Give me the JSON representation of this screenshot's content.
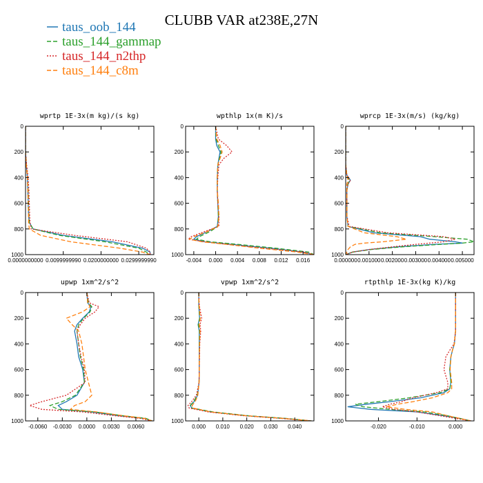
{
  "title": "CLUBB VAR at238E,27N",
  "legend": [
    {
      "name": "taus_oob_144",
      "color": "#1f77b4",
      "dash": "solid"
    },
    {
      "name": "taus_144_gammap",
      "color": "#2ca02c",
      "dash": "dashed"
    },
    {
      "name": "taus_144_n2thp",
      "color": "#d62728",
      "dash": "dotted"
    },
    {
      "name": "taus_144_c8m",
      "color": "#ff7f0e",
      "dash": "dashed"
    }
  ],
  "chart_data": [
    {
      "type": "line",
      "title": "wprtp  1E-3x(m kg)/(s kg)",
      "xlim": [
        0,
        0.034
      ],
      "ylim": [
        1000,
        0
      ],
      "xticks": [
        0,
        0.01,
        0.02,
        0.03
      ],
      "xtick_labels": [
        "0.0000000000",
        "0.0099999990",
        "0.0200000000",
        "0.0299999990"
      ],
      "yticks": [
        0,
        200,
        400,
        600,
        800,
        1000
      ],
      "y": [
        0,
        100,
        200,
        300,
        400,
        500,
        600,
        700,
        750,
        800,
        850,
        900,
        950,
        980,
        1000
      ],
      "series": [
        {
          "name": "taus_oob_144",
          "x": [
            0,
            0,
            0,
            0.0002,
            0.0005,
            0.0006,
            0.0007,
            0.0008,
            0.001,
            0.002,
            0.01,
            0.023,
            0.031,
            0.033,
            0.033
          ]
        },
        {
          "name": "taus_144_gammap",
          "x": [
            0,
            0,
            0,
            0.0002,
            0.0005,
            0.0007,
            0.0008,
            0.0009,
            0.001,
            0.002,
            0.009,
            0.021,
            0.03,
            0.032,
            0.033
          ]
        },
        {
          "name": "taus_144_n2thp",
          "x": [
            0,
            0,
            0,
            0.0003,
            0.0007,
            0.0009,
            0.001,
            0.0011,
            0.0012,
            0.0015,
            0.013,
            0.027,
            0.032,
            0.033,
            0.033
          ]
        },
        {
          "name": "taus_144_c8m",
          "x": [
            0,
            0,
            0,
            0.0002,
            0.0005,
            0.0006,
            0.0007,
            0.0008,
            0.0008,
            0.001,
            0.004,
            0.012,
            0.025,
            0.031,
            0.033
          ]
        }
      ]
    },
    {
      "type": "line",
      "title": "wpthlp  1x(m K)/s",
      "xlim": [
        -0.0055,
        0.018
      ],
      "ylim": [
        1000,
        0
      ],
      "xticks": [
        -0.004,
        0,
        0.004,
        0.008,
        0.012,
        0.016
      ],
      "xtick_labels": [
        "-0.004",
        "0.000",
        "0.004",
        "0.008",
        "0.012",
        "0.016"
      ],
      "yticks": [
        0,
        200,
        400,
        600,
        800,
        1000
      ],
      "y": [
        0,
        100,
        150,
        200,
        250,
        300,
        400,
        500,
        600,
        700,
        780,
        820,
        860,
        880,
        900,
        920,
        950,
        980,
        1000
      ],
      "series": [
        {
          "name": "taus_oob_144",
          "x": [
            0,
            0,
            0.0002,
            0.0008,
            0.0006,
            0.0004,
            0.0003,
            0.0003,
            0.0004,
            0.0005,
            0.0003,
            -0.0015,
            -0.0035,
            -0.004,
            -0.002,
            0.003,
            0.01,
            0.016,
            0.018
          ]
        },
        {
          "name": "taus_144_gammap",
          "x": [
            0,
            0.0001,
            0.0005,
            0.001,
            0.0007,
            0.0004,
            0.0003,
            0.0003,
            0.0004,
            0.0005,
            0.0004,
            -0.001,
            -0.003,
            -0.0035,
            -0.001,
            0.004,
            0.011,
            0.017,
            0.018
          ]
        },
        {
          "name": "taus_144_n2thp",
          "x": [
            0,
            0.0005,
            0.002,
            0.003,
            0.0015,
            0.0006,
            0.0004,
            0.0003,
            0.0004,
            0.0006,
            0.0006,
            -0.002,
            -0.0045,
            -0.005,
            -0.002,
            0.002,
            0.009,
            0.016,
            0.018
          ]
        },
        {
          "name": "taus_144_c8m",
          "x": [
            0,
            0.0002,
            0.0008,
            0.0012,
            0.0008,
            0.0004,
            0.0003,
            0.0003,
            0.0005,
            0.0006,
            0.0004,
            -0.0015,
            -0.004,
            -0.0048,
            -0.0025,
            0.002,
            0.008,
            0.015,
            0.018
          ]
        }
      ]
    },
    {
      "type": "line",
      "title": "wprcp  1E-3x(m/s) (kg/kg)",
      "xlim": [
        0,
        0.0055
      ],
      "ylim": [
        1000,
        0
      ],
      "xticks": [
        0,
        0.001,
        0.002,
        0.003,
        0.004,
        0.005
      ],
      "xtick_labels": [
        "0.000000",
        "0.001000",
        "0.002000",
        "0.003000",
        "0.004000",
        "0.005000"
      ],
      "yticks": [
        0,
        200,
        400,
        600,
        800,
        1000
      ],
      "y": [
        0,
        300,
        380,
        420,
        450,
        500,
        600,
        700,
        780,
        830,
        860,
        880,
        900,
        910,
        920,
        940,
        960,
        980,
        1000
      ],
      "series": [
        {
          "name": "taus_oob_144",
          "x": [
            0,
            0,
            5e-05,
            0.0002,
            0.0001,
            5e-05,
            5e-05,
            5e-05,
            0.0001,
            0.0012,
            0.0032,
            0.0036,
            0.0047,
            0.005,
            0.0038,
            0.0022,
            0.001,
            0.0003,
            0
          ]
        },
        {
          "name": "taus_144_gammap",
          "x": [
            0,
            0,
            5e-05,
            0.00015,
            0.0001,
            5e-05,
            5e-05,
            5e-05,
            0.0001,
            0.0015,
            0.0038,
            0.0052,
            0.0055,
            0.005,
            0.0041,
            0.0024,
            0.0011,
            0.0003,
            0
          ]
        },
        {
          "name": "taus_144_n2thp",
          "x": [
            0,
            0,
            5e-05,
            0.0002,
            0.0001,
            5e-05,
            5e-05,
            5e-05,
            0.00015,
            0.0018,
            0.0042,
            0.0047,
            0.0042,
            0.0036,
            0.003,
            0.002,
            0.001,
            0.0003,
            0
          ]
        },
        {
          "name": "taus_144_c8m",
          "x": [
            0,
            0,
            5e-05,
            0.0001,
            5e-05,
            5e-05,
            5e-05,
            5e-05,
            0.0001,
            0.0008,
            0.0022,
            0.0026,
            0.0016,
            0.0008,
            0.0004,
            0.0002,
            0.0001,
            5e-05,
            0
          ]
        }
      ]
    },
    {
      "type": "line",
      "title": "upwp  1xm^2/s^2",
      "xlim": [
        -0.0075,
        0.0082
      ],
      "ylim": [
        1000,
        0
      ],
      "xticks": [
        -0.006,
        -0.003,
        0,
        0.003,
        0.006
      ],
      "xtick_labels": [
        "-0.0060",
        "-0.0030",
        "0.0000",
        "0.0030",
        "0.0060"
      ],
      "yticks": [
        0,
        200,
        400,
        600,
        800,
        1000
      ],
      "y": [
        0,
        80,
        110,
        150,
        200,
        250,
        300,
        400,
        500,
        600,
        700,
        800,
        850,
        880,
        910,
        930,
        960,
        980,
        1000
      ],
      "series": [
        {
          "name": "taus_oob_144",
          "x": [
            0,
            0.0001,
            0.0005,
            0.0003,
            -0.0005,
            -0.0012,
            -0.0015,
            -0.0012,
            -0.001,
            -0.0005,
            -0.0003,
            -0.0012,
            -0.0025,
            -0.0035,
            -0.003,
            0.0005,
            0.004,
            0.007,
            0.008
          ]
        },
        {
          "name": "taus_144_gammap",
          "x": [
            0,
            0.0002,
            0.0006,
            0.0004,
            -0.0004,
            -0.001,
            -0.0012,
            -0.001,
            -0.0008,
            -0.0004,
            -0.0003,
            -0.0014,
            -0.003,
            -0.0045,
            -0.0035,
            0.001,
            0.0045,
            0.0072,
            0.008
          ]
        },
        {
          "name": "taus_144_n2thp",
          "x": [
            0,
            0.0003,
            0.0015,
            0.001,
            -0.0002,
            -0.0008,
            -0.0012,
            -0.001,
            -0.0007,
            -0.0003,
            -0.0002,
            -0.0025,
            -0.0055,
            -0.007,
            -0.0055,
            -0.0005,
            0.0035,
            0.0065,
            0.008
          ]
        },
        {
          "name": "taus_144_c8m",
          "x": [
            0,
            0.0001,
            0.0004,
            -0.0005,
            -0.0025,
            -0.0018,
            -0.001,
            -0.0006,
            -0.0004,
            -0.0002,
            0.0002,
            0.0006,
            -0.0002,
            -0.0015,
            -0.002,
            0.0012,
            0.0045,
            0.007,
            0.008
          ]
        }
      ]
    },
    {
      "type": "line",
      "title": "vpwp  1xm^2/s^2",
      "xlim": [
        -0.0055,
        0.048
      ],
      "ylim": [
        1000,
        0
      ],
      "xticks": [
        0,
        0.01,
        0.02,
        0.03,
        0.04
      ],
      "xtick_labels": [
        "0.000",
        "0.010",
        "0.020",
        "0.030",
        "0.040"
      ],
      "yticks": [
        0,
        200,
        400,
        600,
        800,
        1000
      ],
      "y": [
        0,
        100,
        200,
        250,
        300,
        400,
        500,
        600,
        700,
        800,
        850,
        880,
        900,
        930,
        960,
        980,
        1000
      ],
      "series": [
        {
          "name": "taus_oob_144",
          "x": [
            0,
            0,
            0.0003,
            -0.0003,
            0.0002,
            0.0002,
            0.0002,
            0.0002,
            0.0001,
            -0.0005,
            -0.002,
            -0.0035,
            -0.003,
            0.005,
            0.02,
            0.035,
            0.047
          ]
        },
        {
          "name": "taus_144_gammap",
          "x": [
            0,
            0,
            0.0004,
            -0.0002,
            0.0003,
            0.0002,
            0.0002,
            0.0002,
            0.0001,
            -0.0006,
            -0.0022,
            -0.0036,
            -0.0028,
            0.006,
            0.021,
            0.036,
            0.047
          ]
        },
        {
          "name": "taus_144_n2thp",
          "x": [
            0,
            0.0002,
            0.0012,
            0.0005,
            0.0008,
            0.0004,
            0.0003,
            0.0002,
            0.0001,
            -0.001,
            -0.003,
            -0.0045,
            -0.004,
            0.004,
            0.019,
            0.034,
            0.047
          ]
        },
        {
          "name": "taus_144_c8m",
          "x": [
            0,
            0.0001,
            0.0006,
            0.0002,
            0.0005,
            0.0003,
            0.0002,
            0.0002,
            0.0001,
            -0.0004,
            -0.0015,
            -0.0028,
            -0.0025,
            0.005,
            0.02,
            0.035,
            0.047
          ]
        }
      ]
    },
    {
      "type": "line",
      "title": "rtpthlp  1E-3x(kg K)/kg",
      "xlim": [
        -0.0285,
        0.0048
      ],
      "ylim": [
        1000,
        0
      ],
      "xticks": [
        -0.02,
        -0.01,
        0
      ],
      "xtick_labels": [
        "-0.020",
        "-0.010",
        "0.000"
      ],
      "yticks": [
        0,
        200,
        400,
        600,
        800,
        1000
      ],
      "y": [
        0,
        100,
        200,
        300,
        400,
        450,
        500,
        600,
        700,
        750,
        780,
        820,
        850,
        870,
        890,
        910,
        930,
        960,
        980,
        1000
      ],
      "series": [
        {
          "name": "taus_oob_144",
          "x": [
            0,
            0,
            0,
            0,
            -0.0003,
            -0.0008,
            -0.0012,
            -0.0015,
            -0.0012,
            -0.0015,
            -0.003,
            -0.009,
            -0.017,
            -0.023,
            -0.028,
            -0.022,
            -0.01,
            -0.003,
            0.001,
            0.004
          ]
        },
        {
          "name": "taus_144_gammap",
          "x": [
            0,
            0,
            0,
            0,
            -0.0003,
            -0.0008,
            -0.0012,
            -0.0015,
            -0.0012,
            -0.0015,
            -0.004,
            -0.012,
            -0.02,
            -0.026,
            -0.024,
            -0.017,
            -0.008,
            -0.002,
            0.001,
            0.004
          ]
        },
        {
          "name": "taus_144_n2thp",
          "x": [
            0,
            0,
            0,
            0,
            -0.0004,
            -0.0015,
            -0.0025,
            -0.003,
            -0.002,
            -0.002,
            -0.005,
            -0.011,
            -0.014,
            -0.017,
            -0.019,
            -0.016,
            -0.01,
            -0.004,
            0,
            0.004
          ]
        },
        {
          "name": "taus_144_c8m",
          "x": [
            0,
            0,
            0,
            0,
            -0.0003,
            -0.0008,
            -0.0012,
            -0.0014,
            -0.001,
            -0.001,
            -0.002,
            -0.006,
            -0.011,
            -0.015,
            -0.018,
            -0.013,
            -0.006,
            -0.002,
            0.001,
            0.004
          ]
        }
      ]
    }
  ]
}
